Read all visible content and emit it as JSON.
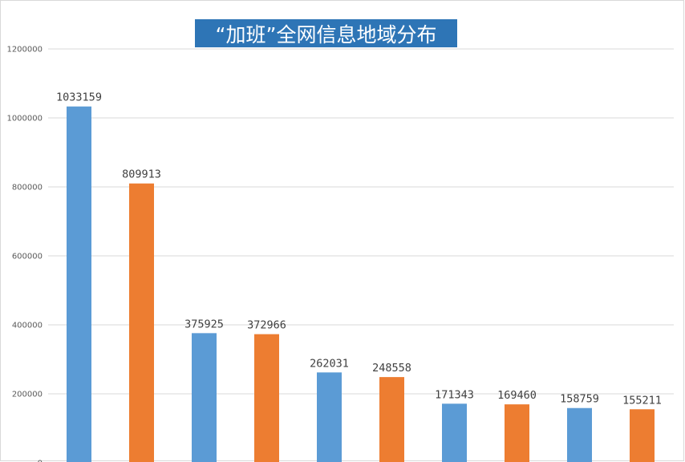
{
  "chart_data": {
    "type": "bar",
    "title": "“加班”全网信息地域分布",
    "categories": [
      "",
      "",
      "",
      "",
      "",
      "",
      "",
      "",
      "",
      ""
    ],
    "values": [
      1033159,
      809913,
      375925,
      372966,
      262031,
      248558,
      171343,
      169460,
      158759,
      155211
    ],
    "bar_colors": [
      "#5b9bd5",
      "#ed7d31",
      "#5b9bd5",
      "#ed7d31",
      "#5b9bd5",
      "#ed7d31",
      "#5b9bd5",
      "#ed7d31",
      "#5b9bd5",
      "#ed7d31"
    ],
    "title_background": "#2e75b6",
    "ylim": [
      0,
      1200000
    ],
    "yticks": [
      0,
      200000,
      400000,
      600000,
      800000,
      1000000,
      1200000
    ],
    "ytick_labels": [
      "0",
      "200000",
      "400000",
      "600000",
      "800000",
      "1000000",
      "1200000"
    ],
    "grid": true,
    "data_labels": true,
    "legend": "none"
  }
}
